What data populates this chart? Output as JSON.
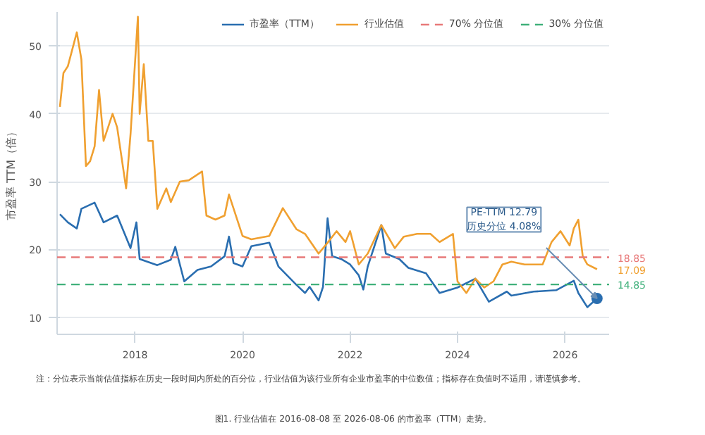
{
  "chart_data": {
    "type": "line",
    "ylabel": "市盈率 TTM（倍）",
    "x": [
      "2016-08-08",
      "2016-10",
      "2016-12",
      "2017-01",
      "2017-04",
      "2017-06",
      "2017-09",
      "2017-12",
      "2018-01-10",
      "2018-02",
      "2018-06",
      "2018-09",
      "2018-10",
      "2018-12",
      "2019-03",
      "2019-06",
      "2019-09",
      "2019-10",
      "2019-11",
      "2020-01",
      "2020-03",
      "2020-07",
      "2020-09",
      "2021-01",
      "2021-03",
      "2021-04",
      "2021-06",
      "2021-07",
      "2021-08",
      "2021-09",
      "2021-11",
      "2022-01",
      "2022-03",
      "2022-04",
      "2022-05",
      "2022-08",
      "2022-09",
      "2022-12",
      "2023-02",
      "2023-06",
      "2023-09",
      "2024-01",
      "2024-05",
      "2024-08",
      "2024-12",
      "2025-01",
      "2025-06",
      "2025-11",
      "2026-03",
      "2026-04",
      "2026-06",
      "2026-08-06"
    ],
    "series": [
      {
        "name": "市盈率（TTM）",
        "color": "#2a6eb0",
        "values": [
          25.2,
          24.0,
          23.1,
          26.0,
          26.9,
          24.0,
          25.0,
          20.2,
          24.0,
          18.6,
          17.7,
          18.5,
          20.4,
          15.3,
          17.0,
          17.5,
          19.0,
          21.9,
          18.0,
          17.5,
          20.5,
          21.0,
          17.5,
          14.8,
          13.6,
          14.5,
          12.5,
          14.5,
          24.6,
          19.0,
          18.6,
          17.8,
          16.2,
          14.1,
          17.5,
          23.6,
          19.4,
          18.6,
          17.3,
          16.5,
          13.6,
          14.4,
          15.7,
          12.3,
          13.8,
          13.2,
          13.8,
          14.0,
          15.4,
          13.6,
          11.5,
          12.79
        ]
      },
      {
        "name": "行业估值",
        "color": "#f0a030",
        "x": [
          "2016-08-08",
          "2016-09",
          "2016-10",
          "2016-12",
          "2017-01",
          "2017-02",
          "2017-03",
          "2017-04",
          "2017-05",
          "2017-06",
          "2017-08",
          "2017-09",
          "2017-11",
          "2017-12",
          "2018-01-20",
          "2018-02",
          "2018-03",
          "2018-04",
          "2018-05",
          "2018-06",
          "2018-08",
          "2018-09",
          "2018-11",
          "2019-01",
          "2019-04",
          "2019-05",
          "2019-07",
          "2019-09",
          "2019-10",
          "2020-01",
          "2020-03",
          "2020-07",
          "2020-10",
          "2021-01",
          "2021-03",
          "2021-06",
          "2021-08",
          "2021-10",
          "2021-12",
          "2022-01",
          "2022-03",
          "2022-05",
          "2022-08",
          "2022-11",
          "2023-01",
          "2023-04",
          "2023-07",
          "2023-09",
          "2023-12",
          "2024-01",
          "2024-03",
          "2024-05",
          "2024-07",
          "2024-09",
          "2024-11",
          "2025-01",
          "2025-04",
          "2025-08",
          "2025-10",
          "2025-12",
          "2026-02",
          "2026-03",
          "2026-04",
          "2026-05",
          "2026-06",
          "2026-08-06"
        ],
        "values": [
          41.0,
          46.0,
          47.0,
          52.0,
          48.0,
          32.3,
          33.0,
          35.2,
          43.5,
          36.0,
          40.0,
          38.0,
          29.0,
          37.0,
          54.3,
          40.0,
          47.3,
          36.0,
          36.0,
          26.0,
          29.0,
          27.0,
          30.0,
          30.2,
          31.5,
          25.0,
          24.4,
          25.0,
          28.1,
          22.0,
          21.5,
          22.0,
          26.1,
          23.0,
          22.3,
          19.4,
          21.0,
          22.7,
          21.1,
          22.7,
          17.8,
          19.4,
          23.6,
          20.2,
          21.9,
          22.3,
          22.3,
          21.1,
          22.3,
          15.3,
          13.6,
          15.7,
          14.4,
          15.3,
          17.8,
          18.2,
          17.8,
          17.8,
          21.1,
          22.7,
          20.6,
          23.1,
          24.4,
          19.0,
          17.8,
          17.09
        ]
      }
    ],
    "xlim": [
      "2016-07-20",
      "2026-11-01"
    ],
    "xticks": [
      "2018",
      "2020",
      "2022",
      "2024",
      "2026"
    ],
    "ylim": [
      7.5,
      55
    ],
    "yticks": [
      10,
      20,
      30,
      40,
      50
    ],
    "ref_lines": [
      {
        "axis": "y",
        "value": 18.85,
        "label": "70% 分位值",
        "color": "#e87a7a",
        "line_style": "dashed"
      },
      {
        "axis": "y",
        "value": 14.85,
        "label": "30% 分位值",
        "color": "#3fb07a",
        "line_style": "dashed"
      }
    ],
    "annotations": [
      "PE-TTM 12.79\n历史分位 4.08%",
      {
        "text": "18.85",
        "x": "2026-08-06",
        "y": 18.85
      },
      {
        "text": "17.09",
        "x": "2026-08-06",
        "y": 17.09
      },
      {
        "text": "14.85",
        "x": "2026-08-06",
        "y": 14.85
      },
      "注：分位表示当前估值指标在历史一段时间内所处的百分位，行业估值为该行业所有企业市盈率的中位数值；指标存在负值时不适用，请谨慎参考。",
      "图1. 行业估值在 2016-08-08 至 2026-08-06 的市盈率（TTM）走势。"
    ],
    "grid": "y",
    "legend": "top right",
    "marker": "none",
    "line_style": "solid"
  }
}
